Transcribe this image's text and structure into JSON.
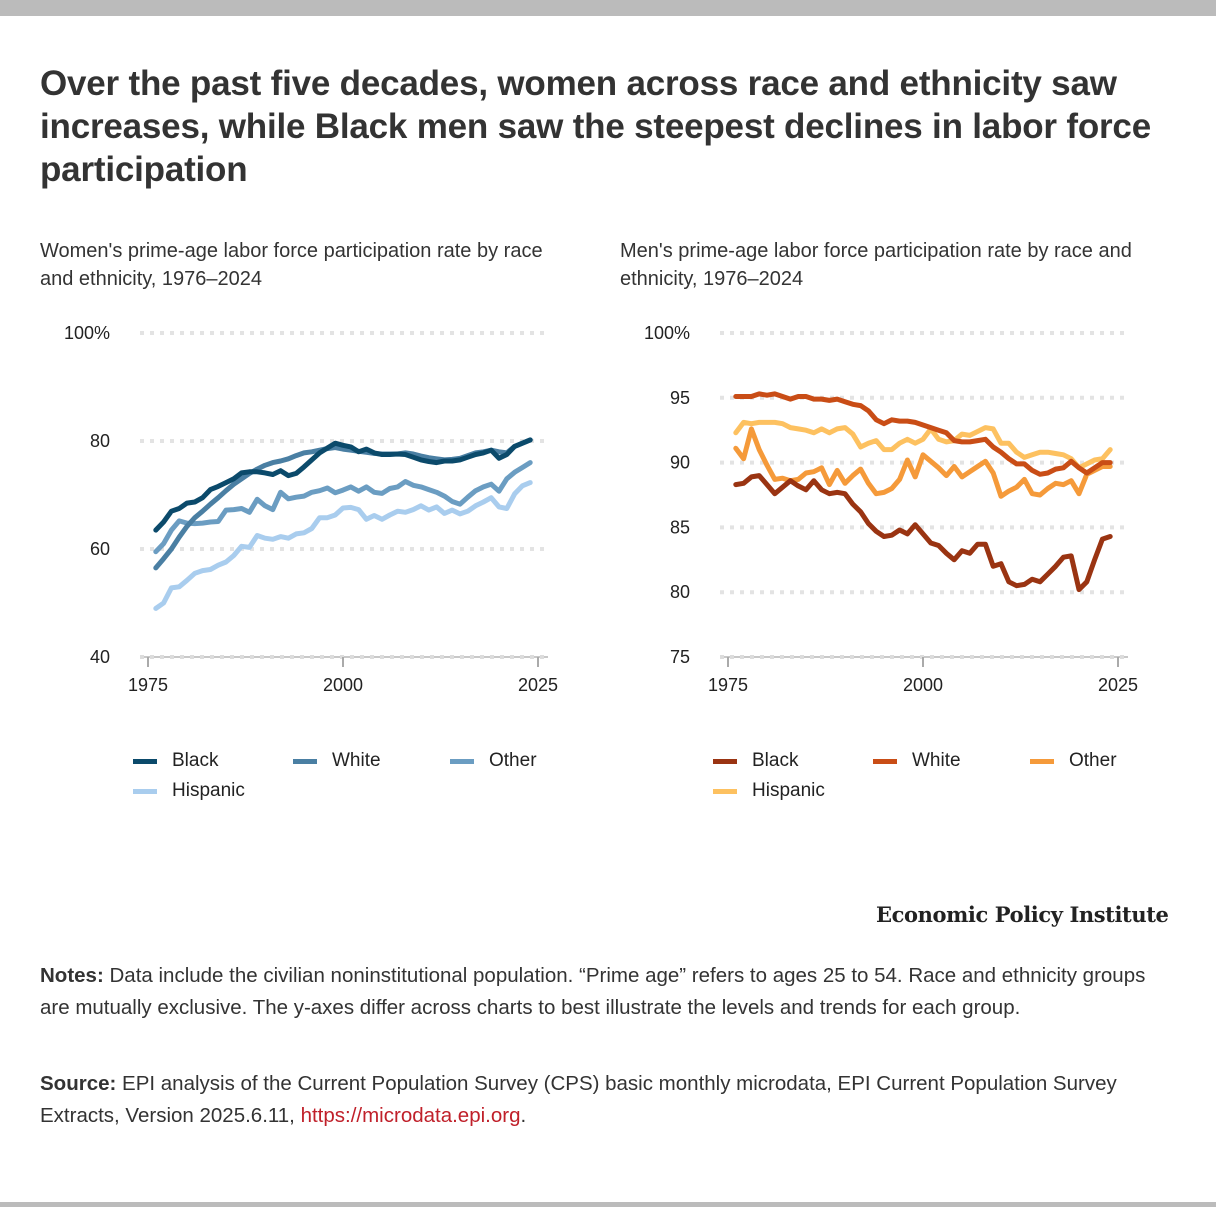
{
  "title": "Over the past five decades, women across race and ethnicity saw increases, while Black men saw the steepest declines in labor force participation",
  "brand": "Economic Policy Institute",
  "notes": {
    "label": "Notes:",
    "text": " Data include the civilian noninstitutional population. “Prime age” refers to ages 25 to 54. Race and ethnicity groups are mutually exclusive. The y-axes differ across charts to best illustrate the levels and trends for each group."
  },
  "source": {
    "label": "Source:",
    "text": " EPI analysis of the Current Population Survey (CPS) basic monthly microdata, EPI Current Population Survey Extracts, Version 2025.6.11, ",
    "link_text": "https://microdata.epi.org",
    "trailing": "."
  },
  "chart_data": [
    {
      "type": "line",
      "title": "Women's prime-age labor force participation rate by race and ethnicity, 1976–2024",
      "xlabel": "",
      "ylabel": "",
      "xlim": [
        1975,
        2025
      ],
      "ylim": [
        40,
        100
      ],
      "x_ticks": [
        "1975",
        "2000",
        "2025"
      ],
      "y_ticks": [
        "100%",
        "80",
        "60",
        "40"
      ],
      "y_tick_values": [
        100,
        80,
        60,
        40
      ],
      "x_tick_values": [
        1975,
        2000,
        2025
      ],
      "grid": true,
      "legend_position": "bottom",
      "x": [
        1976,
        1977,
        1978,
        1979,
        1980,
        1981,
        1982,
        1983,
        1984,
        1985,
        1986,
        1987,
        1988,
        1989,
        1990,
        1991,
        1992,
        1993,
        1994,
        1995,
        1996,
        1997,
        1998,
        1999,
        2000,
        2001,
        2002,
        2003,
        2004,
        2005,
        2006,
        2007,
        2008,
        2009,
        2010,
        2011,
        2012,
        2013,
        2014,
        2015,
        2016,
        2017,
        2018,
        2019,
        2020,
        2021,
        2022,
        2023,
        2024
      ],
      "series": [
        {
          "name": "Black",
          "color": "#0b4a6b",
          "values": [
            63.5,
            65.0,
            67.0,
            67.5,
            68.5,
            68.7,
            69.5,
            71.0,
            71.6,
            72.3,
            73.0,
            74.1,
            74.3,
            74.3,
            74.1,
            73.8,
            74.5,
            73.6,
            74.0,
            75.2,
            76.5,
            77.8,
            78.7,
            79.6,
            79.2,
            78.9,
            78.0,
            78.5,
            77.8,
            77.5,
            77.5,
            77.6,
            77.5,
            77.0,
            76.5,
            76.2,
            76.0,
            76.3,
            76.3,
            76.5,
            77.0,
            77.5,
            77.8,
            78.3,
            76.8,
            77.5,
            79.0,
            79.6,
            80.2
          ]
        },
        {
          "name": "White",
          "color": "#4a7fa3",
          "values": [
            56.5,
            58.2,
            60.0,
            62.2,
            64.2,
            65.8,
            67.0,
            68.3,
            69.5,
            70.8,
            72.0,
            73.0,
            74.0,
            74.8,
            75.5,
            76.0,
            76.3,
            76.7,
            77.3,
            77.8,
            78.0,
            78.3,
            78.6,
            78.8,
            78.5,
            78.3,
            78.1,
            77.9,
            77.7,
            77.6,
            77.6,
            77.6,
            77.8,
            77.6,
            77.2,
            76.9,
            76.7,
            76.5,
            76.6,
            76.8,
            77.3,
            77.8,
            78.0,
            78.3,
            78.0,
            77.8,
            79.0,
            79.6,
            80.2
          ]
        },
        {
          "name": "Other",
          "color": "#6b9dc2",
          "values": [
            59.5,
            61.0,
            63.5,
            65.2,
            64.8,
            64.7,
            64.8,
            65.0,
            65.1,
            67.2,
            67.3,
            67.5,
            66.8,
            69.2,
            68.0,
            67.3,
            70.5,
            69.3,
            69.6,
            69.8,
            70.5,
            70.8,
            71.3,
            70.4,
            70.9,
            71.5,
            70.7,
            71.5,
            70.5,
            70.3,
            71.2,
            71.5,
            72.5,
            71.8,
            71.5,
            71.0,
            70.5,
            69.8,
            68.8,
            68.3,
            69.6,
            70.8,
            71.5,
            72.0,
            70.7,
            73.0,
            74.2,
            75.1,
            76.0
          ]
        },
        {
          "name": "Hispanic",
          "color": "#a9cdee",
          "values": [
            49.0,
            50.0,
            52.8,
            53.0,
            54.2,
            55.5,
            56.0,
            56.2,
            57.0,
            57.6,
            58.8,
            60.5,
            60.3,
            62.5,
            62.0,
            61.8,
            62.3,
            62.0,
            62.8,
            63.0,
            63.8,
            65.8,
            65.8,
            66.3,
            67.6,
            67.7,
            67.3,
            65.5,
            66.2,
            65.5,
            66.3,
            67.0,
            66.8,
            67.3,
            68.0,
            67.2,
            67.8,
            66.6,
            67.2,
            66.5,
            67.0,
            68.0,
            68.7,
            69.5,
            67.8,
            67.5,
            70.2,
            71.7,
            72.3
          ]
        }
      ]
    },
    {
      "type": "line",
      "title": "Men's prime-age labor force participation rate by race and ethnicity, 1976–2024",
      "xlabel": "",
      "ylabel": "",
      "xlim": [
        1975,
        2025
      ],
      "ylim": [
        75,
        100
      ],
      "x_ticks": [
        "1975",
        "2000",
        "2025"
      ],
      "y_ticks": [
        "100%",
        "95",
        "90",
        "85",
        "80",
        "75"
      ],
      "y_tick_values": [
        100,
        95,
        90,
        85,
        80,
        75
      ],
      "x_tick_values": [
        1975,
        2000,
        2025
      ],
      "grid": true,
      "legend_position": "bottom",
      "x": [
        1976,
        1977,
        1978,
        1979,
        1980,
        1981,
        1982,
        1983,
        1984,
        1985,
        1986,
        1987,
        1988,
        1989,
        1990,
        1991,
        1992,
        1993,
        1994,
        1995,
        1996,
        1997,
        1998,
        1999,
        2000,
        2001,
        2002,
        2003,
        2004,
        2005,
        2006,
        2007,
        2008,
        2009,
        2010,
        2011,
        2012,
        2013,
        2014,
        2015,
        2016,
        2017,
        2018,
        2019,
        2020,
        2021,
        2022,
        2023,
        2024
      ],
      "series": [
        {
          "name": "Black",
          "color": "#9a3412",
          "values": [
            88.3,
            88.4,
            88.9,
            89.0,
            88.3,
            87.6,
            88.1,
            88.6,
            88.2,
            87.9,
            88.6,
            87.9,
            87.6,
            87.7,
            87.6,
            86.8,
            86.2,
            85.3,
            84.7,
            84.3,
            84.4,
            84.8,
            84.5,
            85.2,
            84.5,
            83.8,
            83.6,
            83.0,
            82.5,
            83.2,
            83.0,
            83.7,
            83.7,
            82.0,
            82.2,
            80.8,
            80.5,
            80.6,
            81.0,
            80.8,
            81.4,
            82.0,
            82.7,
            82.8,
            80.2,
            80.8,
            82.5,
            84.1,
            84.3
          ]
        },
        {
          "name": "White",
          "color": "#c94d16",
          "values": [
            95.1,
            95.1,
            95.1,
            95.3,
            95.2,
            95.3,
            95.1,
            94.9,
            95.1,
            95.1,
            94.9,
            94.9,
            94.8,
            94.9,
            94.7,
            94.5,
            94.4,
            94.0,
            93.3,
            93.0,
            93.3,
            93.2,
            93.2,
            93.1,
            92.9,
            92.7,
            92.5,
            92.3,
            91.7,
            91.6,
            91.6,
            91.7,
            91.8,
            91.2,
            90.8,
            90.3,
            89.9,
            89.9,
            89.4,
            89.1,
            89.2,
            89.5,
            89.6,
            90.1,
            89.6,
            89.2,
            89.6,
            90.0,
            90.0
          ]
        },
        {
          "name": "Other",
          "color": "#f59a3a",
          "values": [
            91.1,
            90.3,
            92.6,
            91.0,
            89.8,
            88.7,
            88.8,
            88.6,
            88.7,
            89.2,
            89.3,
            89.6,
            88.3,
            89.4,
            88.4,
            89.0,
            89.5,
            88.4,
            87.6,
            87.7,
            88.0,
            88.7,
            90.2,
            88.9,
            90.6,
            90.1,
            89.6,
            89.0,
            89.7,
            88.9,
            89.3,
            89.7,
            90.1,
            89.2,
            87.4,
            87.8,
            88.1,
            88.7,
            87.6,
            87.5,
            88.0,
            88.4,
            88.3,
            88.6,
            87.6,
            89.1,
            89.4,
            89.7,
            89.7
          ]
        },
        {
          "name": "Hispanic",
          "color": "#fdc160",
          "values": [
            92.3,
            93.1,
            93.0,
            93.1,
            93.1,
            93.1,
            93.0,
            92.7,
            92.6,
            92.5,
            92.3,
            92.6,
            92.3,
            92.6,
            92.7,
            92.2,
            91.2,
            91.5,
            91.7,
            91.0,
            91.0,
            91.5,
            91.8,
            91.5,
            91.8,
            92.6,
            91.8,
            91.6,
            91.7,
            92.2,
            92.1,
            92.4,
            92.7,
            92.6,
            91.5,
            91.5,
            90.8,
            90.4,
            90.6,
            90.8,
            90.8,
            90.7,
            90.6,
            90.3,
            89.6,
            89.9,
            90.2,
            90.3,
            91.0
          ]
        }
      ]
    }
  ]
}
